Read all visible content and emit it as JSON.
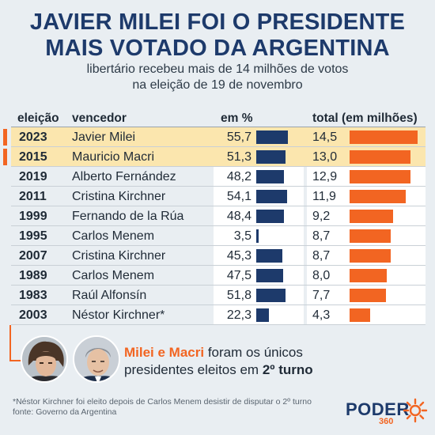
{
  "header": {
    "title_line1": "JAVIER MILEI FOI O PRESIDENTE",
    "title_line2": "MAIS VOTADO DA ARGENTINA",
    "subtitle_line1": "libertário recebeu mais de 14 milhões de votos",
    "subtitle_line2": "na eleição de 19 de novembro"
  },
  "colors": {
    "navy": "#1d3a6b",
    "orange": "#f26522",
    "highlight_row": "#fbe6ae"
  },
  "chart_data": {
    "type": "table",
    "columns": [
      "eleição",
      "vencedor",
      "em %",
      "total (em milhões)"
    ],
    "rows": [
      {
        "year": "2023",
        "winner": "Javier Milei",
        "pct_label": "55,7",
        "pct": 55.7,
        "total_label": "14,5",
        "total": 14.5,
        "highlight": true
      },
      {
        "year": "2015",
        "winner": "Mauricio Macri",
        "pct_label": "51,3",
        "pct": 51.3,
        "total_label": "13,0",
        "total": 13.0,
        "highlight": true
      },
      {
        "year": "2019",
        "winner": "Alberto Fernández",
        "pct_label": "48,2",
        "pct": 48.2,
        "total_label": "12,9",
        "total": 12.9,
        "highlight": false
      },
      {
        "year": "2011",
        "winner": "Cristina Kirchner",
        "pct_label": "54,1",
        "pct": 54.1,
        "total_label": "11,9",
        "total": 11.9,
        "highlight": false
      },
      {
        "year": "1999",
        "winner": "Fernando de la Rúa",
        "pct_label": "48,4",
        "pct": 48.4,
        "total_label": "9,2",
        "total": 9.2,
        "highlight": false
      },
      {
        "year": "1995",
        "winner": "Carlos Menem",
        "pct_label": "3,5",
        "pct": 3.5,
        "total_label": "8,7",
        "total": 8.7,
        "highlight": false
      },
      {
        "year": "2007",
        "winner": "Cristina Kirchner",
        "pct_label": "45,3",
        "pct": 45.3,
        "total_label": "8,7",
        "total": 8.7,
        "highlight": false
      },
      {
        "year": "1989",
        "winner": "Carlos Menem",
        "pct_label": "47,5",
        "pct": 47.5,
        "total_label": "8,0",
        "total": 8.0,
        "highlight": false
      },
      {
        "year": "1983",
        "winner": "Raúl Alfonsín",
        "pct_label": "51,8",
        "pct": 51.8,
        "total_label": "7,7",
        "total": 7.7,
        "highlight": false
      },
      {
        "year": "2003",
        "winner": "Néstor Kirchner*",
        "pct_label": "22,3",
        "pct": 22.3,
        "total_label": "4,3",
        "total": 4.3,
        "highlight": false
      }
    ]
  },
  "callout": {
    "names": "Milei e Macri",
    "text_a": " foram os únicos",
    "text_b": "presidentes eleitos em ",
    "turno": "2º turno"
  },
  "footer": {
    "note": "*Néstor Kirchner foi eleito depois de Carlos Menem desistir de disputar o 2º turno",
    "source": "fonte: Governo da Argentina",
    "logo_word": "PODER",
    "logo_num": "360"
  }
}
